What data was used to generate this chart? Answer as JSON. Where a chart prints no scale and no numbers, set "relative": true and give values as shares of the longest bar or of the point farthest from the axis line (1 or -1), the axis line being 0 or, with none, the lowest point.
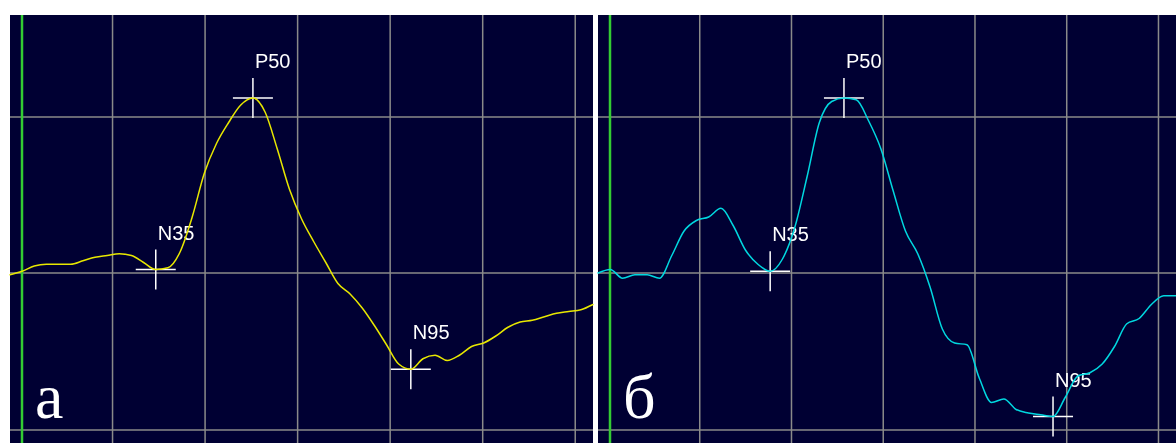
{
  "chart_data": [
    {
      "type": "line",
      "title": "а",
      "relative": true,
      "grid": true,
      "categories": [
        null,
        null,
        null,
        null,
        null,
        null,
        null,
        null,
        null,
        null,
        null,
        null,
        null,
        null,
        null,
        null,
        null,
        null,
        null,
        null,
        null,
        null,
        null,
        null,
        null,
        null,
        null,
        null,
        null,
        null,
        null,
        null,
        null,
        null,
        null,
        null,
        null,
        null,
        null,
        null,
        null,
        null,
        null,
        null,
        null,
        null,
        null,
        null,
        null
      ],
      "series": [
        {
          "color": "#e8e800",
          "values": [
            -0.01,
            0.01,
            0.04,
            0.05,
            0.05,
            0.05,
            0.07,
            0.09,
            0.1,
            0.11,
            0.1,
            0.06,
            0.02,
            0.03,
            0.12,
            0.32,
            0.57,
            0.74,
            0.86,
            0.96,
            1,
            0.92,
            0.71,
            0.48,
            0.31,
            0.18,
            0.06,
            -0.06,
            -0.12,
            -0.2,
            -0.3,
            -0.41,
            -0.52,
            -0.55,
            -0.49,
            -0.47,
            -0.5,
            -0.47,
            -0.42,
            -0.4,
            -0.36,
            -0.31,
            -0.28,
            -0.27,
            -0.25,
            -0.23,
            -0.22,
            -0.21,
            -0.18
          ]
        }
      ],
      "annotations": [
        "N35",
        "P50",
        "N95"
      ]
    },
    {
      "type": "line",
      "title": "б",
      "relative": true,
      "grid": true,
      "categories": [
        null,
        null,
        null,
        null,
        null,
        null,
        null,
        null,
        null,
        null,
        null,
        null,
        null,
        null,
        null,
        null,
        null,
        null,
        null,
        null,
        null,
        null,
        null,
        null,
        null,
        null,
        null,
        null,
        null,
        null,
        null,
        null,
        null,
        null,
        null,
        null,
        null,
        null,
        null,
        null,
        null,
        null,
        null,
        null,
        null,
        null,
        null,
        null
      ],
      "series": [
        {
          "color": "#00d8e0",
          "values": [
            0,
            0.02,
            -0.03,
            -0.01,
            -0.01,
            -0.03,
            0.1,
            0.24,
            0.3,
            0.32,
            0.37,
            0.27,
            0.13,
            0.05,
            0.01,
            0.08,
            0.26,
            0.55,
            0.86,
            0.98,
            1,
            0.99,
            0.87,
            0.71,
            0.47,
            0.24,
            0.11,
            -0.08,
            -0.32,
            -0.4,
            -0.41,
            -0.6,
            -0.74,
            -0.72,
            -0.78,
            -0.8,
            -0.81,
            -0.82,
            -0.71,
            -0.59,
            -0.57,
            -0.52,
            -0.42,
            -0.29,
            -0.26,
            -0.18,
            -0.13,
            -0.13
          ]
        }
      ],
      "annotations": [
        "N35",
        "P50",
        "N95"
      ]
    }
  ]
}
